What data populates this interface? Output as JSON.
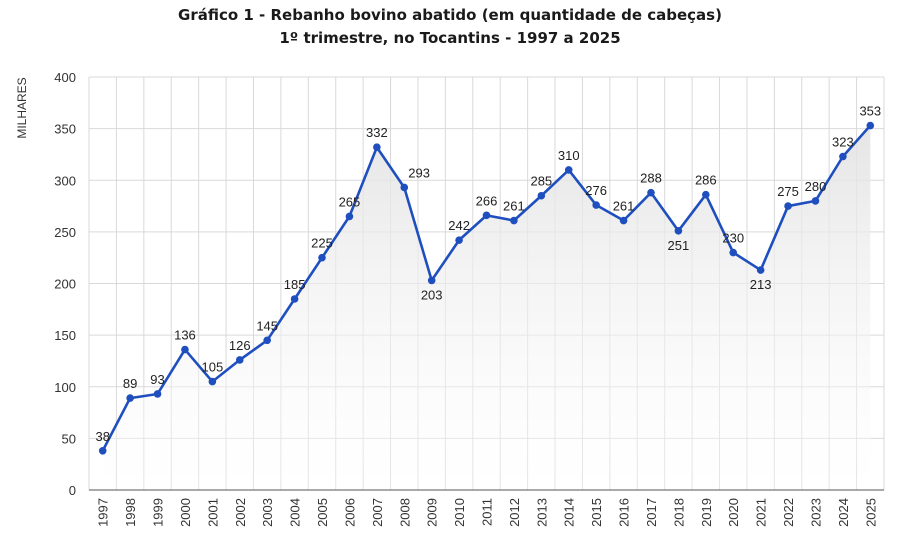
{
  "chart_data": {
    "type": "line",
    "title": "Gráfico 1 -  Rebanho bovino abatido (em quantidade de cabeças)",
    "subtitle": "1º trimestre, no Tocantins - 1997 a 2025",
    "ylabel": "MILHARES",
    "xlabel": "",
    "ylim": [
      0,
      400
    ],
    "yticks": [
      0,
      50,
      100,
      150,
      200,
      250,
      300,
      350,
      400
    ],
    "grid": {
      "horizontal": true,
      "vertical": true
    },
    "legend": "none",
    "colors": {
      "line": "#1f4fbf",
      "grid": "#d9d9d9",
      "area_top": "#e6e6e6"
    },
    "categories": [
      "1997",
      "1998",
      "1999",
      "2000",
      "2001",
      "2002",
      "2003",
      "2004",
      "2005",
      "2006",
      "2007",
      "2008",
      "2009",
      "2010",
      "2011",
      "2012",
      "2013",
      "2014",
      "2015",
      "2016",
      "2017",
      "2018",
      "2019",
      "2020",
      "2021",
      "2022",
      "2023",
      "2024",
      "2025"
    ],
    "values": [
      38,
      89,
      93,
      136,
      105,
      126,
      145,
      185,
      225,
      265,
      332,
      293,
      203,
      242,
      266,
      261,
      285,
      310,
      276,
      261,
      288,
      251,
      286,
      230,
      213,
      275,
      280,
      323,
      353
    ],
    "label_positions": [
      "above",
      "above",
      "above",
      "above",
      "above",
      "above",
      "above",
      "above",
      "above",
      "above",
      "above",
      "right",
      "below",
      "above",
      "above",
      "above",
      "above",
      "above",
      "above",
      "above",
      "above",
      "below",
      "above",
      "above",
      "below",
      "above",
      "above",
      "above",
      "above"
    ]
  }
}
